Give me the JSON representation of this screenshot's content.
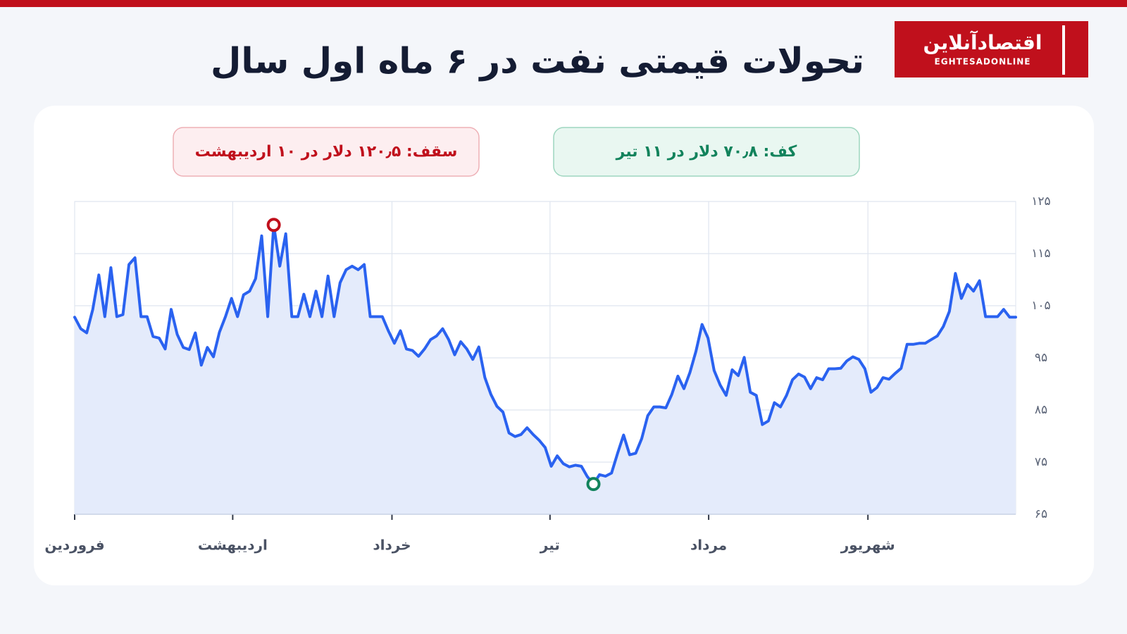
{
  "logo": {
    "name": "اقتصادآنلاین",
    "latin": "EGHTESADONLINE"
  },
  "chart_data": {
    "type": "line",
    "title": "تحولات قیمتی نفت در ۶ ماه اول سال",
    "annotations": {
      "high": "سقف: ۱۲۰٫۵ دلار در ۱۰ اردیبهشت",
      "low": "کف: ۷۰٫۸ دلار در ۱۱ تیر"
    },
    "color": "#2a62f0",
    "area_color": "#e4ebfb",
    "high_color": "#c0101c",
    "low_color": "#12835c",
    "grid": true,
    "x": [
      0,
      1,
      2,
      3,
      4,
      5,
      6,
      7,
      8,
      9,
      10,
      11,
      12,
      13,
      14,
      15,
      16,
      17,
      18,
      19,
      20,
      21,
      22,
      23,
      24,
      25,
      26,
      27,
      28,
      29,
      30,
      31,
      32,
      33,
      34,
      35,
      36,
      37,
      38,
      39,
      40,
      41,
      42,
      43,
      44,
      45,
      46,
      47,
      48,
      49,
      50,
      51,
      52,
      53,
      54,
      55,
      56,
      57,
      58,
      59,
      60,
      61,
      62,
      63,
      64,
      65,
      66,
      67,
      68,
      69,
      70,
      71,
      72,
      73,
      74,
      75,
      76,
      77,
      78,
      79,
      80,
      81,
      82,
      83,
      84,
      85,
      86,
      87,
      88,
      89,
      90,
      91,
      92,
      93,
      94,
      95,
      96,
      97,
      98,
      99,
      100,
      101,
      102,
      103,
      104,
      105,
      106,
      107,
      108,
      109,
      110,
      111,
      112,
      113,
      114,
      115,
      116,
      117,
      118,
      119,
      120,
      121,
      122,
      123,
      124,
      125,
      126,
      127,
      128,
      129,
      130,
      131,
      132,
      133,
      134,
      135,
      136,
      137,
      138,
      139,
      140,
      141,
      142,
      143,
      144,
      145,
      146,
      147,
      148,
      149,
      150,
      151,
      152,
      153,
      154,
      155,
      156
    ],
    "values": [
      102.8,
      100.6,
      99.8,
      104.3,
      110.9,
      102.9,
      112.3,
      102.9,
      103.3,
      112.9,
      114.2,
      102.9,
      102.9,
      99.1,
      98.8,
      96.7,
      104.3,
      99.5,
      97.0,
      96.6,
      99.8,
      93.6,
      97.0,
      95.2,
      99.9,
      102.9,
      106.4,
      102.9,
      107.1,
      107.8,
      110.2,
      118.4,
      102.9,
      120.5,
      112.6,
      118.8,
      102.9,
      102.9,
      107.2,
      102.9,
      107.8,
      102.9,
      110.7,
      102.9,
      109.4,
      111.9,
      112.6,
      111.9,
      112.9,
      102.9,
      102.9,
      102.9,
      100.2,
      97.8,
      100.2,
      96.7,
      96.4,
      95.3,
      96.7,
      98.5,
      99.2,
      100.6,
      98.5,
      95.6,
      98.1,
      96.7,
      94.7,
      97.1,
      91.2,
      88.0,
      85.7,
      84.6,
      80.6,
      79.9,
      80.3,
      81.6,
      80.3,
      79.2,
      77.8,
      74.2,
      76.2,
      74.7,
      74.1,
      74.4,
      74.2,
      72.2,
      70.8,
      72.6,
      72.3,
      72.9,
      76.7,
      80.2,
      76.4,
      76.7,
      79.5,
      83.9,
      85.6,
      85.6,
      85.4,
      88.0,
      91.5,
      89.1,
      92.2,
      96.3,
      101.4,
      98.8,
      92.6,
      89.8,
      87.8,
      92.7,
      91.6,
      95.1,
      88.4,
      87.8,
      82.2,
      82.9,
      86.4,
      85.6,
      87.8,
      90.8,
      91.9,
      91.3,
      89.1,
      91.2,
      90.8,
      92.9,
      92.9,
      93.0,
      94.4,
      95.2,
      94.7,
      92.9,
      88.4,
      89.3,
      91.2,
      90.9,
      92.0,
      93.0,
      97.6,
      97.6,
      97.8,
      97.8,
      98.5,
      99.2,
      101.0,
      103.9,
      111.2,
      106.4,
      109.1,
      107.8,
      109.8,
      102.9,
      102.9,
      102.9,
      104.3,
      102.8,
      102.8
    ],
    "xlim": [
      0,
      156
    ],
    "xticks": [
      {
        "value": 0,
        "label": "فروردین"
      },
      {
        "value": 26.2,
        "label": "اردیبهشت"
      },
      {
        "value": 52.6,
        "label": "خرداد"
      },
      {
        "value": 78.8,
        "label": "تیر"
      },
      {
        "value": 105.1,
        "label": "مرداد"
      },
      {
        "value": 131.5,
        "label": "شهریور"
      }
    ],
    "ylim": [
      65,
      125
    ],
    "yticks": [
      {
        "value": 65,
        "label": "۶۵"
      },
      {
        "value": 75,
        "label": "۷۵"
      },
      {
        "value": 85,
        "label": "۸۵"
      },
      {
        "value": 95,
        "label": "۹۵"
      },
      {
        "value": 105,
        "label": "۱۰۵"
      },
      {
        "value": 115,
        "label": "۱۱۵"
      },
      {
        "value": 125,
        "label": "۱۲۵"
      }
    ]
  }
}
